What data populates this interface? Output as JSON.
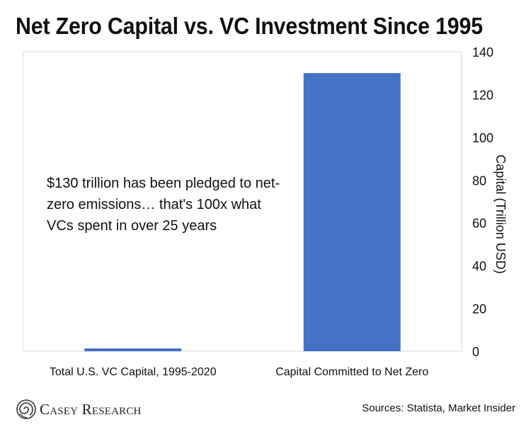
{
  "chart_data": {
    "type": "bar",
    "title": "Net Zero Capital vs. VC Investment Since 1995",
    "categories": [
      "Total U.S. VC Capital, 1995-2020",
      "Capital Committed to Net Zero"
    ],
    "values": [
      1.3,
      130
    ],
    "ylabel": "Capital (Trillion USD)",
    "ylim": [
      0,
      140
    ],
    "yticks": [
      "0",
      "20",
      "40",
      "60",
      "80",
      "100",
      "120",
      "140"
    ],
    "y_axis_side": "right",
    "grid": false,
    "legend": "none",
    "bar_color": "#4472C4",
    "annotation": "$130 trillion has been pledged to net-zero emissions… that's 100x what VCs spent in over 25 years"
  },
  "footer": {
    "brand": "Casey Research",
    "sources": "Sources: Statista, Market Insider"
  },
  "icons": {
    "logo": "spiral-logo-icon"
  }
}
